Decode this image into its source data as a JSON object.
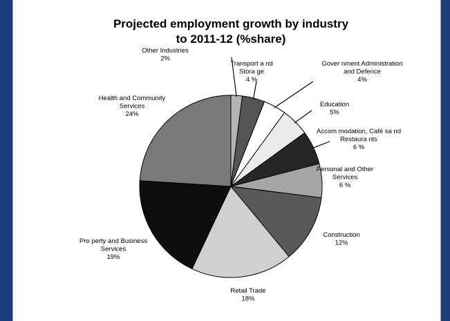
{
  "chart_data": {
    "type": "pie",
    "title": "Projected employment growth by industry to 2011-12 (%share)",
    "title_lines": [
      "Projected employment growth by industry",
      "to 2011-12 (%share)"
    ],
    "slices": [
      {
        "name": "Other Industries",
        "value": 2,
        "value_label": "2%",
        "label_lines": [
          "Other Industries"
        ],
        "color": "#b4b4b4"
      },
      {
        "name": "Transport and Storage",
        "value": 4,
        "value_label": "4 %",
        "label_lines": [
          "Transport a nd",
          "Stora ge"
        ],
        "color": "#555555"
      },
      {
        "name": "Government Administration and Defence",
        "value": 4,
        "value_label": "4%",
        "label_lines": [
          "Gover nment Administration",
          "and Defence"
        ],
        "color": "#ffffff"
      },
      {
        "name": "Education",
        "value": 5,
        "value_label": "5%",
        "label_lines": [
          "Education"
        ],
        "color": "#ebebeb"
      },
      {
        "name": "Accommodation, Cafés and Restaurants",
        "value": 6,
        "value_label": "6 %",
        "label_lines": [
          "Accom modation, Café sa nd",
          "Restaura nts"
        ],
        "color": "#262626"
      },
      {
        "name": "Personal and Other Services",
        "value": 6,
        "value_label": "6 %",
        "label_lines": [
          "Personal and Other",
          "Services"
        ],
        "color": "#a6a6a6"
      },
      {
        "name": "Construction",
        "value": 12,
        "value_label": "12%",
        "label_lines": [
          "Construction"
        ],
        "color": "#595959"
      },
      {
        "name": "Retail Trade",
        "value": 18,
        "value_label": "18%",
        "label_lines": [
          "Retail Trade"
        ],
        "color": "#d0d0d0"
      },
      {
        "name": "Property and Business Services",
        "value": 19,
        "value_label": "19%",
        "label_lines": [
          "Pro perty and Business",
          "Services"
        ],
        "color": "#0d0d0d"
      },
      {
        "name": "Health and Community Services",
        "value": 24,
        "value_label": "24%",
        "label_lines": [
          "Health and Community",
          "Services"
        ],
        "color": "#7a7a7a"
      }
    ],
    "start_angle_deg": 0,
    "direction": "clockwise",
    "legend": "none"
  }
}
